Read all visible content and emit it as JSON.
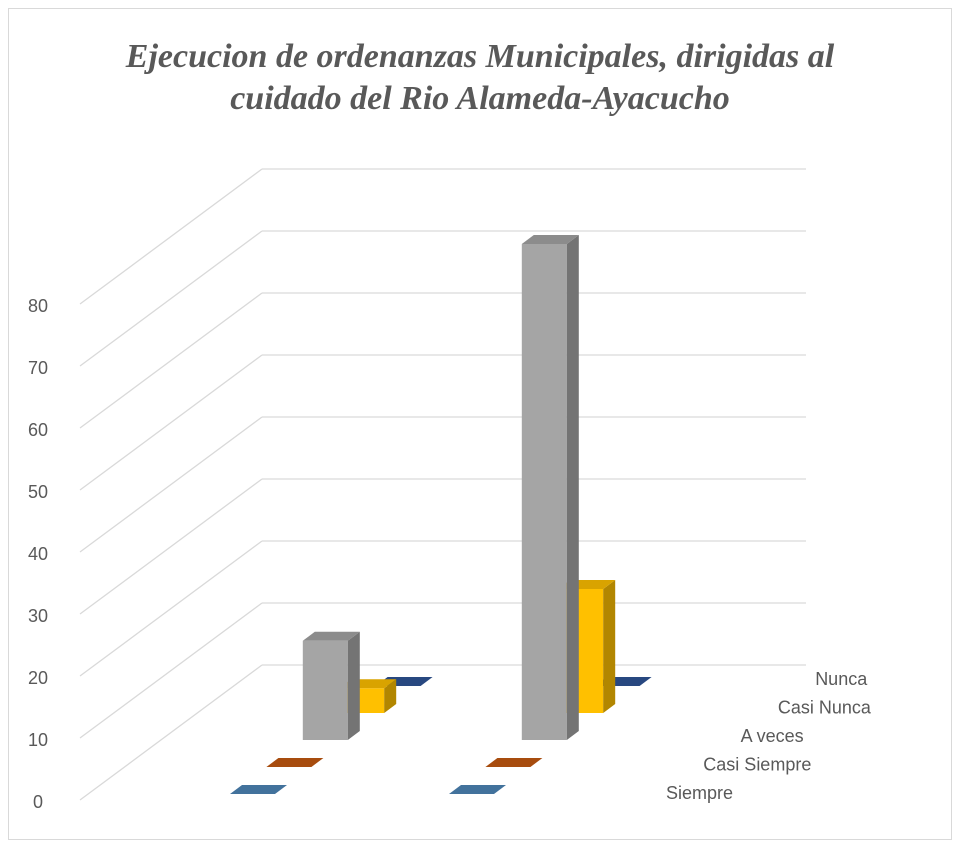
{
  "chart_data": {
    "type": "bar3d",
    "title": "Ejecucion de ordenanzas Municipales, dirigidas al cuidado del Rio Alameda-Ayacucho",
    "categories": [
      null,
      null
    ],
    "series": [
      {
        "name": "Siempre",
        "color": "#4e86b8",
        "values": [
          0,
          0
        ]
      },
      {
        "name": "Casi Siempre",
        "color": "#c55a11",
        "values": [
          0,
          0
        ]
      },
      {
        "name": "A veces",
        "color": "#a5a5a5",
        "values": [
          16,
          80
        ]
      },
      {
        "name": "Casi Nunca",
        "color": "#ffc000",
        "values": [
          4,
          20
        ]
      },
      {
        "name": "Nunca",
        "color": "#2f5597",
        "values": [
          0,
          0
        ]
      }
    ],
    "ylim": [
      0,
      80
    ],
    "yticks": [
      0,
      10,
      20,
      30,
      40,
      50,
      60,
      70,
      80
    ],
    "grid": true
  }
}
